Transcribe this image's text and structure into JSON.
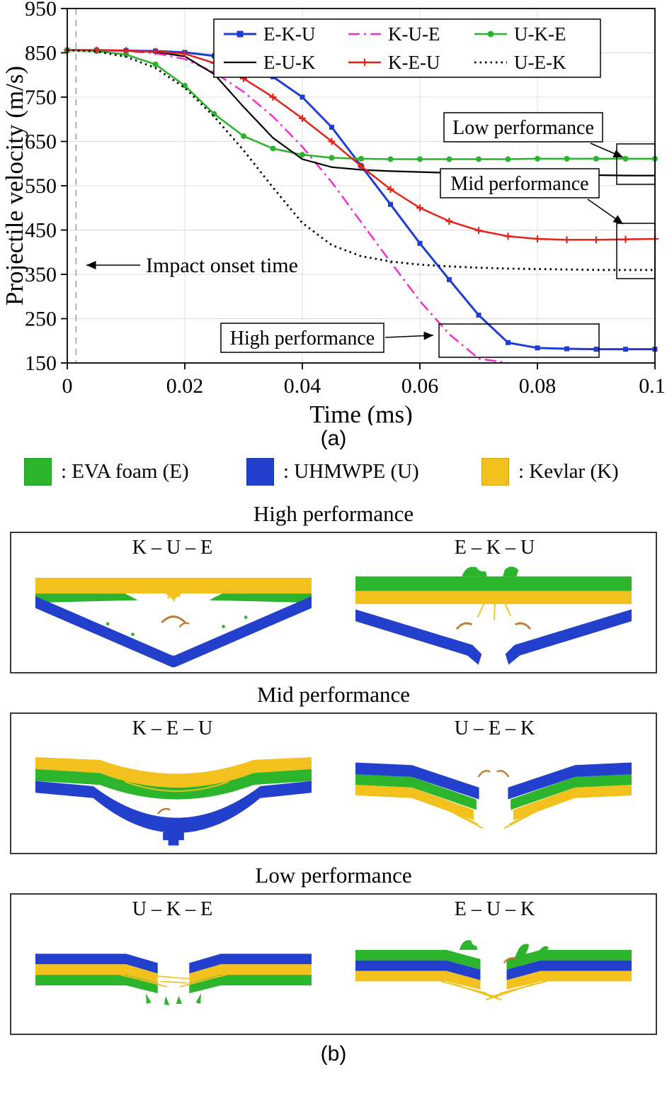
{
  "captions": {
    "a": "(a)",
    "b": "(b)"
  },
  "materials": [
    {
      "name": "eva-foam",
      "label": ": EVA foam (E)",
      "color": "#2db42d"
    },
    {
      "name": "uhmwpe",
      "label": ": UHMWPE (U)",
      "color": "#2240cc"
    },
    {
      "name": "kevlar",
      "label": ": Kevlar (K)",
      "color": "#f2c11d"
    }
  ],
  "panels": [
    {
      "title": "High performance",
      "left_label": "K – U – E",
      "right_label": "E – K – U"
    },
    {
      "title": "Mid performance",
      "left_label": "K – E – U",
      "right_label": "U – E – K"
    },
    {
      "title": "Low performance",
      "left_label": "U – K – E",
      "right_label": "E – U – K"
    }
  ],
  "chart_data": {
    "type": "line",
    "title": "",
    "xlabel": "Time (ms)",
    "ylabel": "Projectile velocity (m/s)",
    "xlim": [
      0,
      0.1
    ],
    "ylim": [
      150,
      950
    ],
    "xticks": [
      0,
      0.02,
      0.04,
      0.06,
      0.08,
      0.1
    ],
    "xtick_labels": [
      "0",
      "0.02",
      "0.04",
      "0.06",
      "0.08",
      "0.1"
    ],
    "yticks": [
      150,
      250,
      350,
      450,
      550,
      650,
      750,
      850,
      950
    ],
    "grid": true,
    "legend_position": "inside-top-center",
    "x": [
      0,
      0.005,
      0.01,
      0.015,
      0.02,
      0.025,
      0.03,
      0.035,
      0.04,
      0.045,
      0.05,
      0.055,
      0.06,
      0.065,
      0.07,
      0.075,
      0.08,
      0.085,
      0.09,
      0.095,
      0.1
    ],
    "series": [
      {
        "name": "E-K-U",
        "color": "#1f3dd4",
        "style": "solid",
        "marker": "square",
        "width": 3,
        "values": [
          856,
          856,
          855,
          854,
          851,
          843,
          826,
          796,
          750,
          682,
          595,
          508,
          420,
          338,
          258,
          196,
          184,
          182,
          181,
          181,
          181
        ]
      },
      {
        "name": "K-U-E",
        "color": "#f02fd0",
        "style": "dashdot",
        "marker": "none",
        "width": 2.5,
        "values": [
          856,
          856,
          854,
          849,
          836,
          806,
          762,
          706,
          638,
          558,
          468,
          378,
          290,
          215,
          160,
          150,
          null,
          null,
          null,
          null,
          null
        ]
      },
      {
        "name": "U-K-E",
        "color": "#2bb32b",
        "style": "solid",
        "marker": "circle",
        "width": 2.5,
        "values": [
          856,
          854,
          846,
          824,
          776,
          712,
          662,
          634,
          620,
          613,
          611,
          610,
          610,
          610,
          610,
          610,
          611,
          611,
          611,
          611,
          611
        ]
      },
      {
        "name": "E-U-K",
        "color": "#000000",
        "style": "solid",
        "marker": "none",
        "width": 2.2,
        "values": [
          856,
          856,
          855,
          852,
          842,
          802,
          728,
          658,
          610,
          592,
          586,
          583,
          581,
          579,
          577,
          576,
          575,
          574,
          574,
          573,
          573
        ]
      },
      {
        "name": "K-E-U",
        "color": "#e32219",
        "style": "solid",
        "marker": "plus",
        "width": 2.5,
        "values": [
          856,
          856,
          855,
          853,
          848,
          827,
          792,
          750,
          702,
          650,
          594,
          542,
          500,
          470,
          449,
          436,
          430,
          428,
          428,
          429,
          430
        ]
      },
      {
        "name": "U-E-K",
        "color": "#000000",
        "style": "dotted",
        "marker": "none",
        "width": 2.8,
        "values": [
          856,
          853,
          841,
          816,
          771,
          706,
          630,
          546,
          466,
          416,
          391,
          379,
          372,
          368,
          365,
          363,
          362,
          361,
          360,
          360,
          360
        ]
      }
    ],
    "annotations": {
      "impact_onset": "Impact onset time",
      "high": "High performance",
      "mid": "Mid performance",
      "low": "Low performance"
    }
  }
}
